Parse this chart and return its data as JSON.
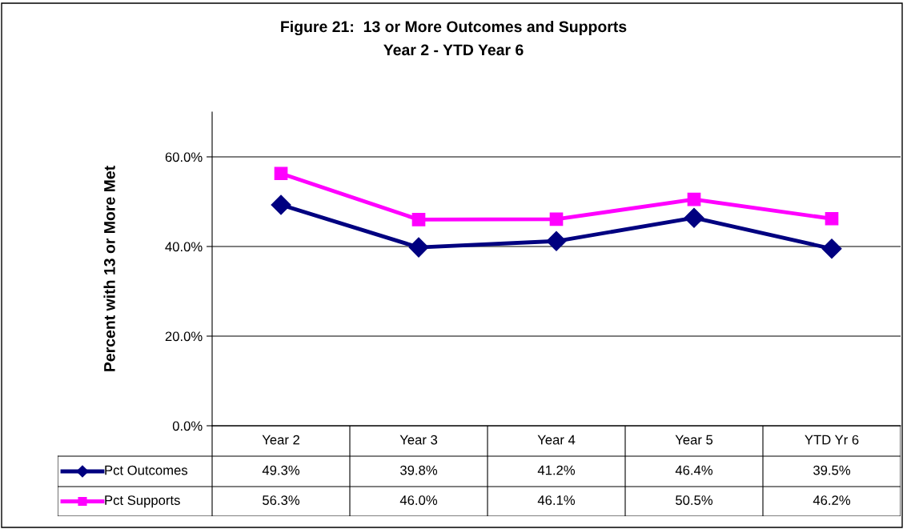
{
  "chart_data": {
    "type": "line",
    "title": "Figure 21:  13 or More Outcomes and Supports",
    "subtitle": "Year 2 - YTD Year 6",
    "ylabel": "Percent with 13 or More Met",
    "categories": [
      "Year 2",
      "Year 3",
      "Year 4",
      "Year 5",
      "YTD Yr 6"
    ],
    "series": [
      {
        "name": "Pct Outcomes",
        "color": "#000080",
        "marker": "diamond",
        "values": [
          49.3,
          39.8,
          41.2,
          46.4,
          39.5
        ],
        "value_labels": [
          "49.3%",
          "39.8%",
          "41.2%",
          "46.4%",
          "39.5%"
        ]
      },
      {
        "name": "Pct Supports",
        "color": "#ff00ff",
        "marker": "square",
        "values": [
          56.3,
          46.0,
          46.1,
          50.5,
          46.2
        ],
        "value_labels": [
          "56.3%",
          "46.0%",
          "46.1%",
          "50.5%",
          "46.2%"
        ]
      }
    ],
    "ylim": [
      0,
      70
    ],
    "yticks": [
      {
        "value": 0,
        "label": "0.0%"
      },
      {
        "value": 20,
        "label": "20.0%"
      },
      {
        "value": 40,
        "label": "40.0%"
      },
      {
        "value": 60,
        "label": "60.0%"
      }
    ],
    "grid": "y",
    "legend": "bottom",
    "line_style": "solid"
  }
}
